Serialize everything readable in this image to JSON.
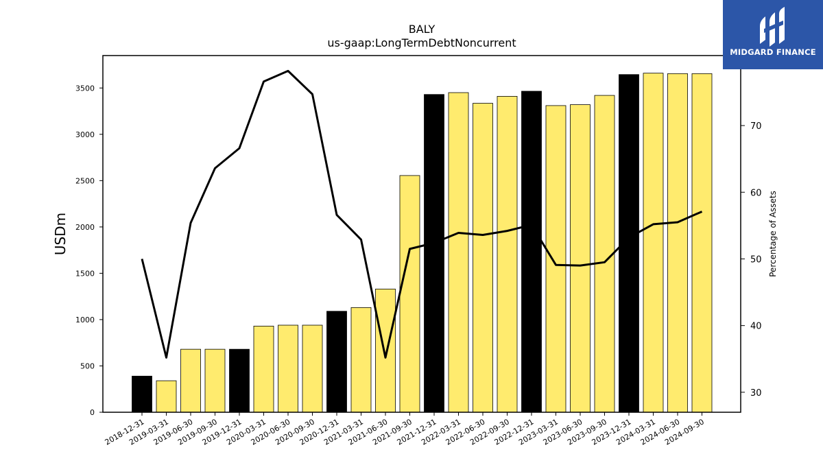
{
  "brand": {
    "name": "MIDGARD FINANCE",
    "bg_color": "#2c56a8"
  },
  "chart_data": {
    "type": "bar",
    "title": "BALY",
    "subtitle": "us-gaap:LongTermDebtNoncurrent",
    "ylabel": "USDm",
    "y2label": "Percentage of Assets",
    "categories": [
      "2018-12-31",
      "2019-03-31",
      "2019-06-30",
      "2019-09-30",
      "2019-12-31",
      "2020-03-31",
      "2020-06-30",
      "2020-09-30",
      "2020-12-31",
      "2021-03-31",
      "2021-06-30",
      "2021-09-30",
      "2021-12-31",
      "2022-03-31",
      "2022-06-30",
      "2022-09-30",
      "2022-12-31",
      "2023-03-31",
      "2023-06-30",
      "2023-09-30",
      "2023-12-31",
      "2024-03-31",
      "2024-06-30",
      "2024-09-30"
    ],
    "series": [
      {
        "values": [
          390,
          340,
          680,
          680,
          680,
          930,
          940,
          940,
          1090,
          1130,
          1330,
          2555,
          3430,
          3450,
          3335,
          3410,
          3465,
          3310,
          3320,
          3420,
          3645,
          3660,
          3655,
          3655
        ],
        "axis": "left",
        "kind": "bar"
      },
      {
        "values": [
          50,
          35.2,
          55.4,
          63.6,
          66.6,
          76.6,
          78.2,
          74.7,
          56.6,
          52.9,
          35.2,
          51.5,
          52.4,
          53.9,
          53.6,
          54.2,
          55.1,
          49.1,
          49.0,
          49.5,
          53.2,
          55.2,
          55.5,
          57.1
        ],
        "axis": "right",
        "kind": "line"
      }
    ],
    "annual_flags": [
      true,
      false,
      false,
      false,
      true,
      false,
      false,
      false,
      true,
      false,
      false,
      false,
      true,
      false,
      false,
      false,
      true,
      false,
      false,
      false,
      true,
      false,
      false,
      false
    ],
    "colors": {
      "annual": "#000000",
      "quarterly": "#ffeb6e",
      "line": "#000000"
    },
    "ylim": [
      0,
      3850
    ],
    "y2lim": [
      27,
      80.5
    ],
    "yticks": [
      0,
      500,
      1000,
      1500,
      2000,
      2500,
      3000,
      3500
    ],
    "y2ticks": [
      30,
      40,
      50,
      60,
      70
    ],
    "grid": false,
    "legend": "none"
  }
}
